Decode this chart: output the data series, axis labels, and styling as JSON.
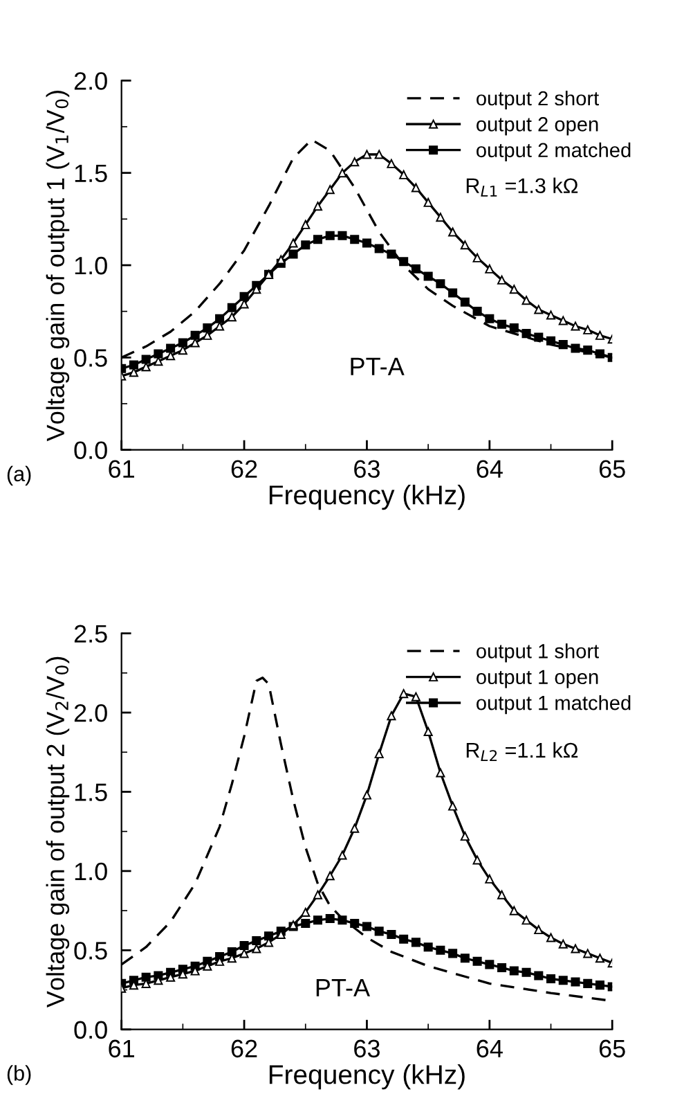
{
  "chart_data": [
    {
      "type": "line",
      "xlabel": "Frequency (kHz)",
      "ylabel": "Voltage gain of output 1 (V$_{1}$/V$_{0}$)",
      "xlim": [
        61,
        65
      ],
      "xticks": [
        61,
        62,
        63,
        64,
        65
      ],
      "ylim": [
        0,
        2.0
      ],
      "yticks": [
        {
          "value": 0,
          "label": "0.0"
        },
        {
          "value": 0.5,
          "label": "0.5"
        },
        {
          "value": 1.0,
          "label": "1.0"
        },
        {
          "value": 1.5,
          "label": "1.5"
        },
        {
          "value": 2.0,
          "label": "2.0"
        }
      ],
      "grid": false,
      "legend": "top right",
      "annotations": [
        "PT-A",
        "R$_{L1}$ =1.3 kΩ",
        "(a)"
      ],
      "series": [
        {
          "name": "output 2 short",
          "color": "#000000",
          "marker": "none",
          "line_style": "dashed",
          "x": [
            61,
            61.2,
            61.4,
            61.6,
            61.8,
            62.0,
            62.2,
            62.4,
            62.55,
            62.7,
            62.9,
            63.1,
            63.3,
            63.5,
            63.7,
            64.0,
            64.5,
            65.0
          ],
          "values": [
            0.5,
            0.56,
            0.64,
            0.75,
            0.9,
            1.08,
            1.32,
            1.58,
            1.68,
            1.62,
            1.42,
            1.18,
            1.0,
            0.87,
            0.78,
            0.67,
            0.57,
            0.5
          ]
        },
        {
          "name": "output 2 open",
          "color": "#000000",
          "marker": "triangle",
          "line_style": "solid",
          "x": [
            61,
            61.1,
            61.2,
            61.3,
            61.4,
            61.5,
            61.6,
            61.7,
            61.8,
            61.9,
            62.0,
            62.1,
            62.2,
            62.3,
            62.4,
            62.5,
            62.6,
            62.7,
            62.8,
            62.9,
            63.0,
            63.1,
            63.2,
            63.3,
            63.4,
            63.5,
            63.6,
            63.7,
            63.8,
            63.9,
            64.0,
            64.1,
            64.2,
            64.3,
            64.4,
            64.5,
            64.6,
            64.7,
            64.8,
            64.9,
            65.0
          ],
          "values": [
            0.4,
            0.42,
            0.45,
            0.48,
            0.51,
            0.54,
            0.58,
            0.62,
            0.67,
            0.72,
            0.79,
            0.87,
            0.95,
            1.03,
            1.12,
            1.22,
            1.32,
            1.41,
            1.5,
            1.56,
            1.6,
            1.6,
            1.55,
            1.49,
            1.42,
            1.34,
            1.26,
            1.18,
            1.11,
            1.04,
            0.98,
            0.92,
            0.87,
            0.81,
            0.76,
            0.73,
            0.7,
            0.67,
            0.65,
            0.62,
            0.6
          ]
        },
        {
          "name": "output 2 matched",
          "color": "#000000",
          "marker": "square",
          "line_style": "solid",
          "x": [
            61,
            61.1,
            61.2,
            61.3,
            61.4,
            61.5,
            61.6,
            61.7,
            61.8,
            61.9,
            62.0,
            62.1,
            62.2,
            62.3,
            62.4,
            62.5,
            62.6,
            62.7,
            62.8,
            62.9,
            63.0,
            63.1,
            63.2,
            63.3,
            63.4,
            63.5,
            63.6,
            63.7,
            63.8,
            63.9,
            64.0,
            64.1,
            64.2,
            64.3,
            64.4,
            64.5,
            64.6,
            64.7,
            64.8,
            64.9,
            65.0
          ],
          "values": [
            0.44,
            0.46,
            0.49,
            0.52,
            0.55,
            0.58,
            0.62,
            0.66,
            0.71,
            0.77,
            0.83,
            0.89,
            0.95,
            1.01,
            1.06,
            1.11,
            1.14,
            1.16,
            1.16,
            1.14,
            1.12,
            1.09,
            1.06,
            1.02,
            0.98,
            0.94,
            0.9,
            0.85,
            0.8,
            0.75,
            0.71,
            0.68,
            0.66,
            0.63,
            0.61,
            0.59,
            0.57,
            0.55,
            0.54,
            0.52,
            0.5
          ]
        }
      ]
    },
    {
      "type": "line",
      "xlabel": "Frequency (kHz)",
      "ylabel": "Voltage gain of output 2 (V$_{2}$/V$_{0}$)",
      "xlim": [
        61,
        65
      ],
      "xticks": [
        61,
        62,
        63,
        64,
        65
      ],
      "ylim": [
        0,
        2.5
      ],
      "yticks": [
        {
          "value": 0,
          "label": "0.0"
        },
        {
          "value": 0.5,
          "label": "0.5"
        },
        {
          "value": 1.0,
          "label": "1.0"
        },
        {
          "value": 1.5,
          "label": "1.5"
        },
        {
          "value": 2.0,
          "label": "2.0"
        },
        {
          "value": 2.5,
          "label": "2.5"
        }
      ],
      "grid": false,
      "legend": "top right",
      "annotations": [
        "PT-A",
        "R$_{L2}$ =1.1 kΩ",
        "(b)"
      ],
      "series": [
        {
          "name": "output 1 short",
          "color": "#000000",
          "marker": "none",
          "line_style": "dashed",
          "x": [
            61,
            61.2,
            61.4,
            61.6,
            61.8,
            61.9,
            62.0,
            62.1,
            62.15,
            62.2,
            62.3,
            62.4,
            62.5,
            62.6,
            62.7,
            62.8,
            63.0,
            63.2,
            63.5,
            64.0,
            64.5,
            65.0
          ],
          "values": [
            0.41,
            0.52,
            0.68,
            0.92,
            1.28,
            1.55,
            1.85,
            2.2,
            2.22,
            2.18,
            1.8,
            1.45,
            1.15,
            0.92,
            0.78,
            0.7,
            0.58,
            0.49,
            0.4,
            0.29,
            0.23,
            0.18
          ]
        },
        {
          "name": "output 1 open",
          "color": "#000000",
          "marker": "triangle",
          "line_style": "solid",
          "x": [
            61,
            61.1,
            61.2,
            61.3,
            61.4,
            61.5,
            61.6,
            61.7,
            61.8,
            61.9,
            62.0,
            62.1,
            62.2,
            62.3,
            62.4,
            62.5,
            62.6,
            62.7,
            62.8,
            62.9,
            63.0,
            63.1,
            63.2,
            63.3,
            63.4,
            63.5,
            63.6,
            63.7,
            63.8,
            63.9,
            64.0,
            64.1,
            64.2,
            64.3,
            64.4,
            64.5,
            64.6,
            64.7,
            64.8,
            64.9,
            65.0
          ],
          "values": [
            0.26,
            0.28,
            0.29,
            0.31,
            0.33,
            0.35,
            0.37,
            0.4,
            0.43,
            0.45,
            0.48,
            0.51,
            0.55,
            0.6,
            0.66,
            0.74,
            0.85,
            0.97,
            1.1,
            1.27,
            1.48,
            1.74,
            1.98,
            2.12,
            2.1,
            1.88,
            1.62,
            1.41,
            1.22,
            1.07,
            0.95,
            0.85,
            0.75,
            0.69,
            0.63,
            0.58,
            0.54,
            0.51,
            0.48,
            0.45,
            0.42
          ]
        },
        {
          "name": "output 1 matched",
          "color": "#000000",
          "marker": "square",
          "line_style": "solid",
          "x": [
            61,
            61.1,
            61.2,
            61.3,
            61.4,
            61.5,
            61.6,
            61.7,
            61.8,
            61.9,
            62.0,
            62.1,
            62.2,
            62.3,
            62.4,
            62.5,
            62.6,
            62.7,
            62.8,
            62.9,
            63.0,
            63.1,
            63.2,
            63.3,
            63.4,
            63.5,
            63.6,
            63.7,
            63.8,
            63.9,
            64.0,
            64.1,
            64.2,
            64.3,
            64.4,
            64.5,
            64.6,
            64.7,
            64.8,
            64.9,
            65.0
          ],
          "values": [
            0.29,
            0.31,
            0.33,
            0.34,
            0.36,
            0.38,
            0.4,
            0.43,
            0.46,
            0.49,
            0.53,
            0.56,
            0.59,
            0.62,
            0.65,
            0.67,
            0.69,
            0.7,
            0.69,
            0.67,
            0.65,
            0.62,
            0.6,
            0.57,
            0.55,
            0.52,
            0.5,
            0.48,
            0.45,
            0.43,
            0.41,
            0.39,
            0.37,
            0.36,
            0.34,
            0.32,
            0.31,
            0.3,
            0.29,
            0.28,
            0.27
          ]
        }
      ]
    }
  ]
}
